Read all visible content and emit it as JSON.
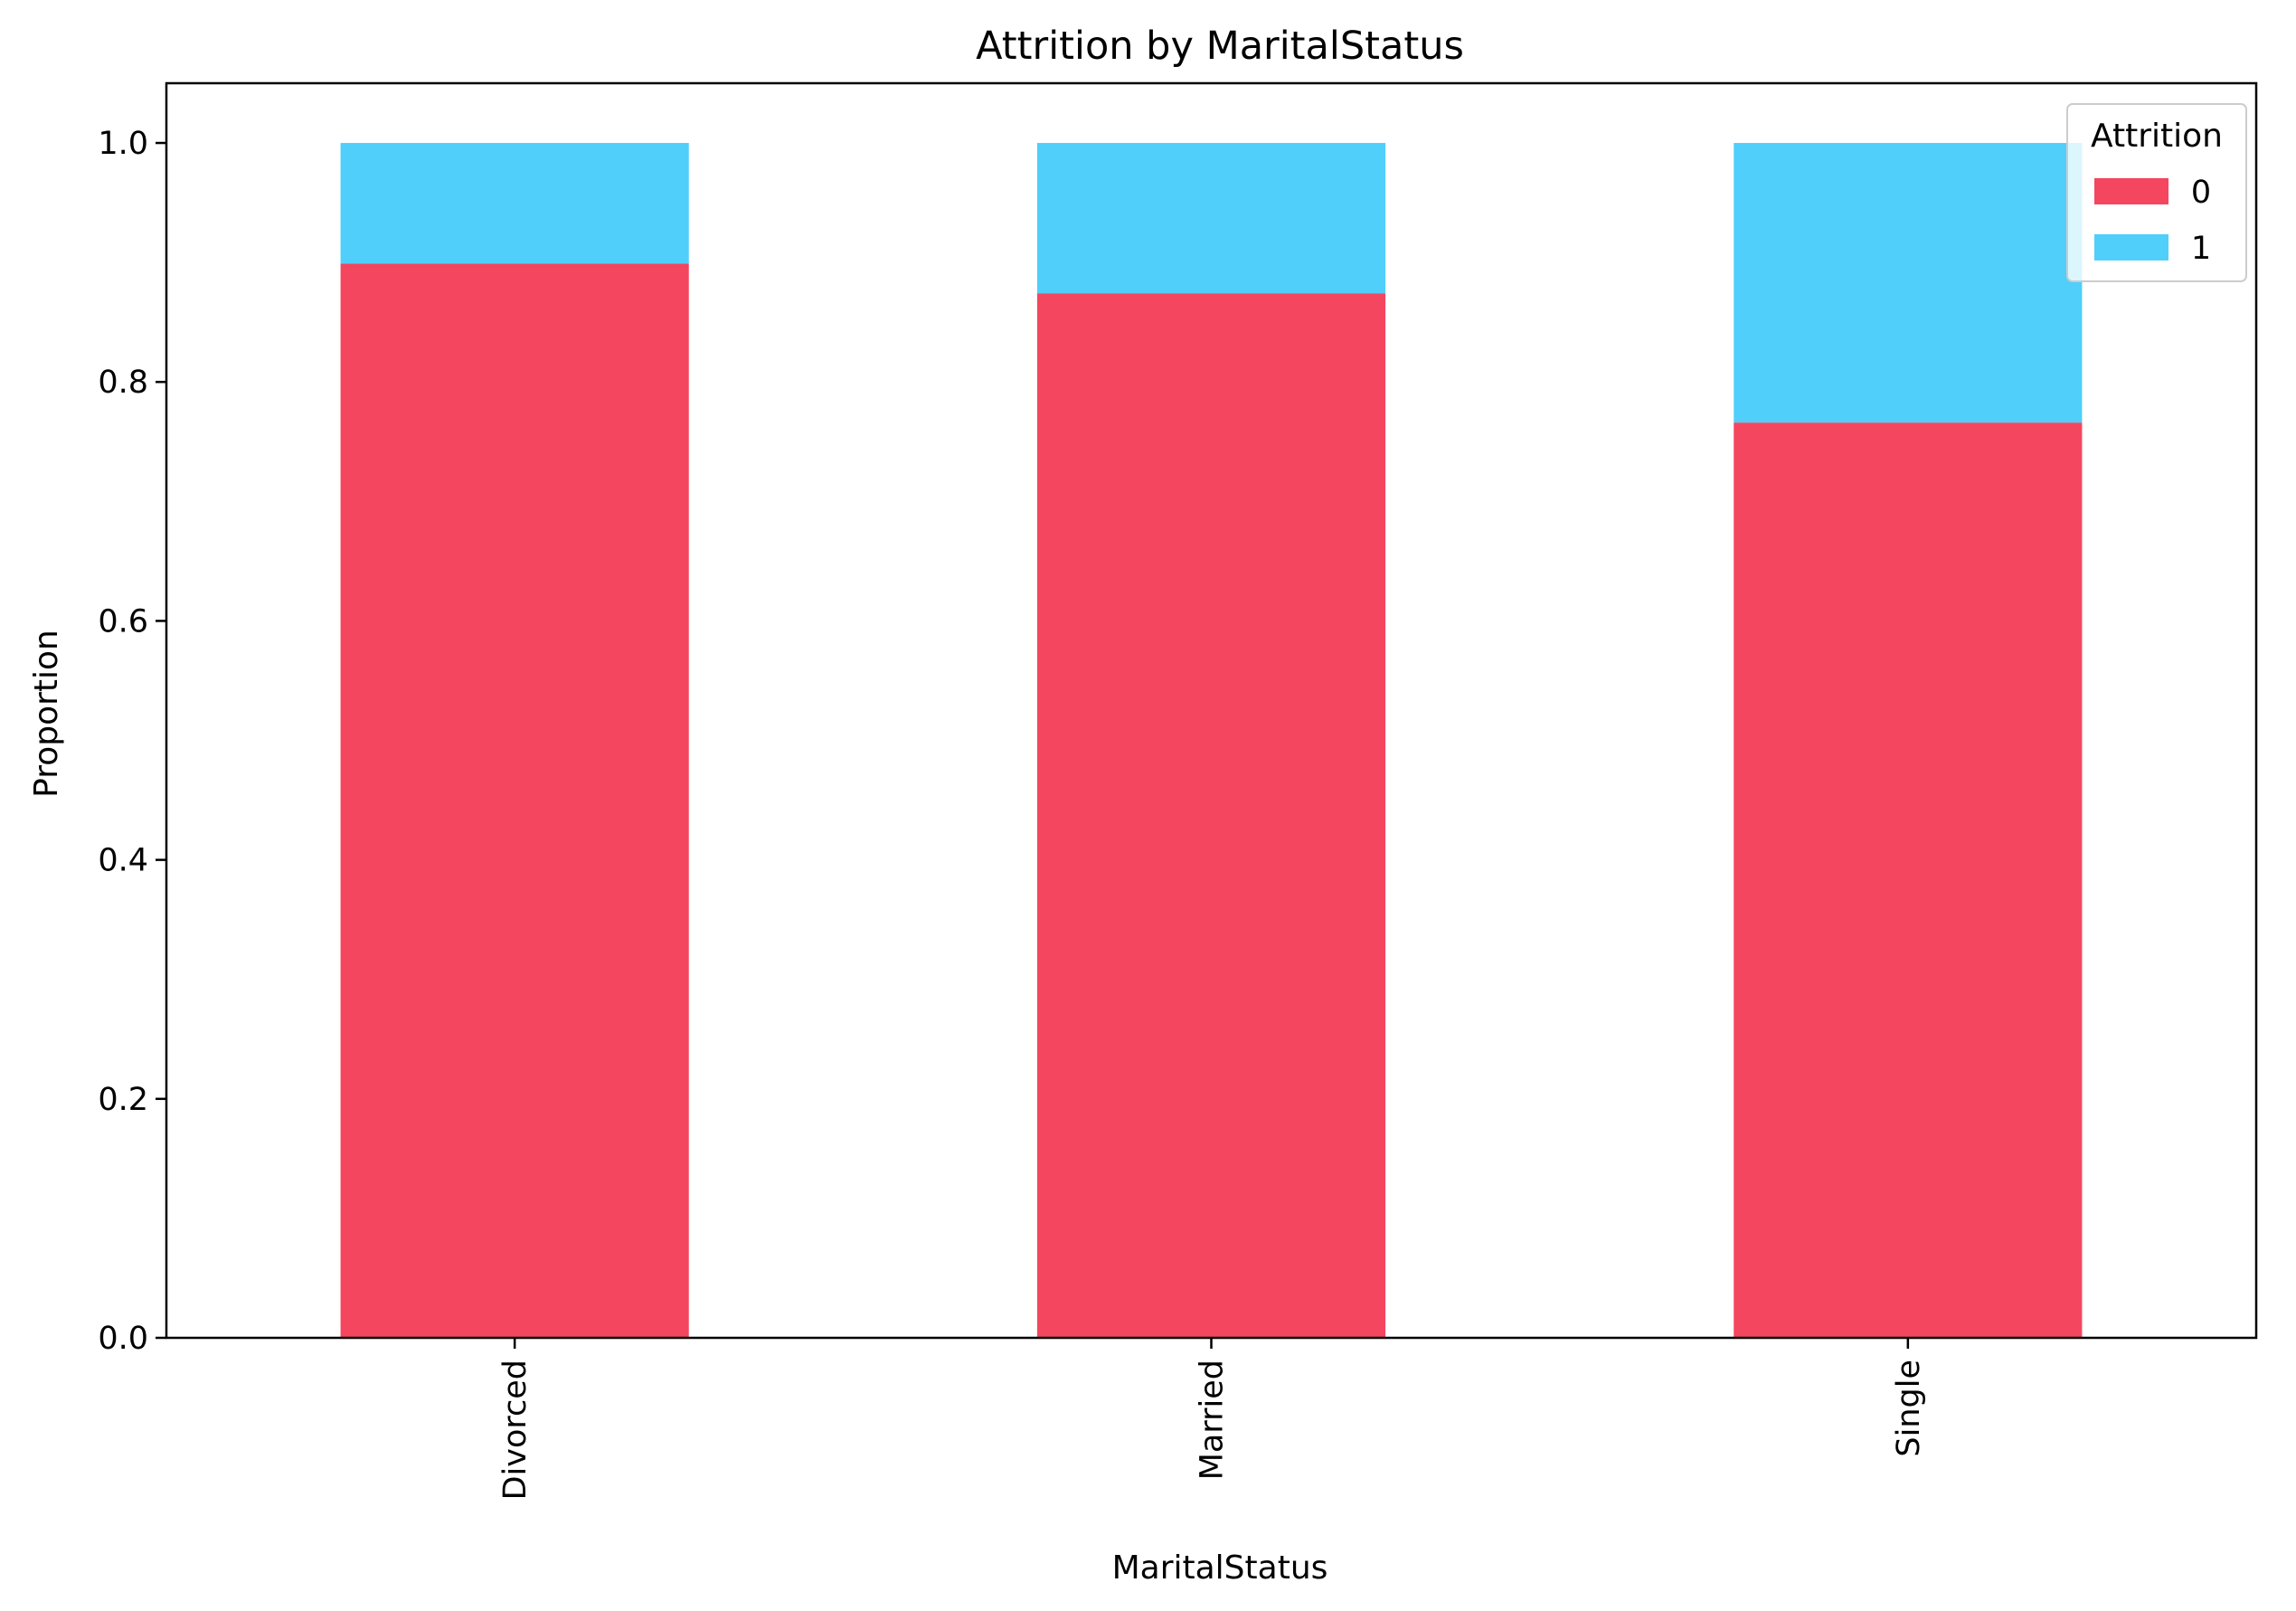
{
  "chart_data": {
    "type": "bar",
    "stacked": true,
    "title": "Attrition by MaritalStatus",
    "xlabel": "MaritalStatus",
    "ylabel": "Proportion",
    "categories": [
      "Divorced",
      "Married",
      "Single"
    ],
    "series": [
      {
        "name": "0",
        "color": "#f4465f",
        "values": [
          0.899,
          0.874,
          0.766
        ]
      },
      {
        "name": "1",
        "color": "#50cffb",
        "values": [
          0.101,
          0.126,
          0.234
        ]
      }
    ],
    "ylim": [
      0,
      1.05
    ],
    "yticks": [
      0.0,
      0.2,
      0.4,
      0.6,
      0.8,
      1.0
    ],
    "ytick_labels": [
      "0.0",
      "0.2",
      "0.4",
      "0.6",
      "0.8",
      "1.0"
    ],
    "grid": false,
    "legend": {
      "title": "Attrition",
      "position": "top-right"
    }
  }
}
